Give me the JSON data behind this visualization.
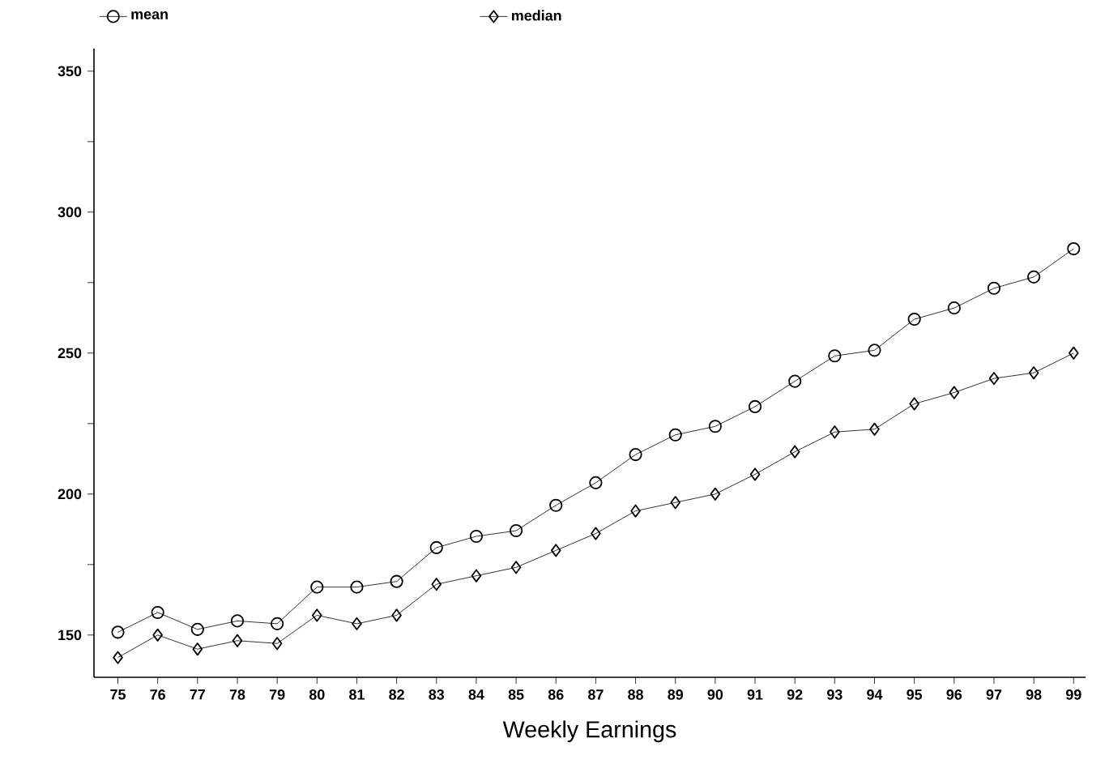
{
  "chart_data": {
    "type": "line",
    "xlabel": "Weekly Earnings",
    "categories": [
      "75",
      "76",
      "77",
      "78",
      "79",
      "80",
      "81",
      "82",
      "83",
      "84",
      "85",
      "86",
      "87",
      "88",
      "89",
      "90",
      "91",
      "92",
      "93",
      "94",
      "95",
      "96",
      "97",
      "98",
      "99"
    ],
    "series": [
      {
        "name": "mean",
        "color": "#000000",
        "marker": "circle",
        "values": [
          151,
          158,
          152,
          155,
          154,
          167,
          167,
          169,
          181,
          185,
          187,
          196,
          204,
          214,
          221,
          224,
          231,
          240,
          249,
          251,
          262,
          266,
          273,
          277,
          287
        ]
      },
      {
        "name": "median",
        "color": "#000000",
        "marker": "diamond",
        "values": [
          142,
          150,
          145,
          148,
          147,
          157,
          154,
          157,
          168,
          171,
          174,
          180,
          186,
          194,
          197,
          200,
          207,
          215,
          222,
          223,
          232,
          236,
          241,
          243,
          250
        ]
      }
    ],
    "ylim": [
      135,
      358
    ],
    "yticks": [
      150,
      {
        "value": 175,
        "label": null
      },
      200,
      {
        "value": 225,
        "label": null
      },
      250,
      {
        "value": 275,
        "label": null
      },
      300,
      {
        "value": 325,
        "label": null
      },
      350
    ],
    "legend": "top",
    "grid": false,
    "line_style": "solid"
  }
}
